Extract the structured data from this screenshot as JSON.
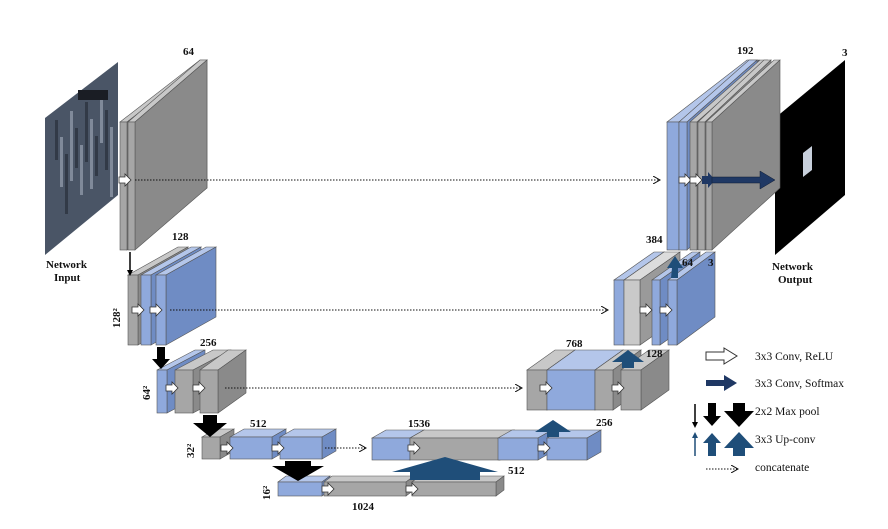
{
  "labels": {
    "l1_channels": "64",
    "l2_channels": "128",
    "l2_size": "128²",
    "l3_channels": "256",
    "l3_size": "64²",
    "l4_channels": "512",
    "l4_size": "32²",
    "l5_size": "16²",
    "l5_channels": "1024",
    "d4_concat": "1536",
    "d4_up": "512",
    "d3_concat": "768",
    "d3_out": "256",
    "d3_up": "128",
    "d2_concat": "384",
    "d2_out_a": "64",
    "d2_out_b": "3",
    "d1_concat": "192",
    "output_channels": "3"
  },
  "input": {
    "line1": "Network",
    "line2": "Input"
  },
  "output": {
    "line1": "Network",
    "line2": "Output"
  },
  "legend": [
    {
      "icon": "white-arrow-icon",
      "label": "3x3 Conv, ReLU"
    },
    {
      "icon": "navy-arrow-icon",
      "label": "3x3 Conv, Softmax"
    },
    {
      "icon": "black-down-arrow-icon",
      "label": "2x2 Max pool"
    },
    {
      "icon": "blue-up-arrow-icon",
      "label": "3x3 Up-conv"
    },
    {
      "icon": "dotted-arrow-icon",
      "label": "concatenate"
    }
  ],
  "colors": {
    "blue_block": "#8fa9dc",
    "gray_block": "#a6a6a6",
    "pool_arrow": "#000000",
    "upconv_arrow": "#1f4e79",
    "softmax_arrow": "#1f3864"
  }
}
